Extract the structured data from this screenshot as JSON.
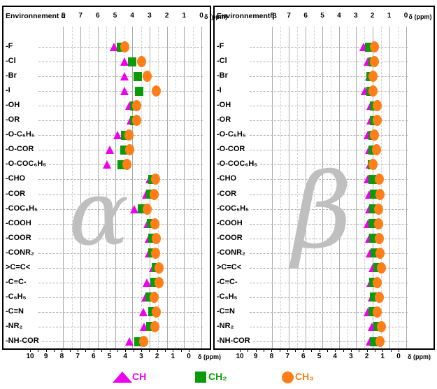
{
  "chart_data": [
    {
      "type": "scatter",
      "title": "Environnement α",
      "watermark": "α",
      "top_axis": {
        "ticks": [
          "8",
          "7",
          "6",
          "5",
          "4",
          "3",
          "2",
          "1",
          "0"
        ],
        "unit": "δ (ppm)",
        "range": [
          8,
          0
        ]
      },
      "bottom_axis": {
        "ticks": [
          "10",
          "9",
          "8",
          "7",
          "6",
          "5",
          "4",
          "3",
          "2",
          "1",
          "0"
        ],
        "unit": "δ (ppm)",
        "range": [
          10,
          0
        ]
      },
      "grid": "on",
      "categories": [
        "-F",
        "-Cl",
        "-Br",
        "-I",
        "-OH",
        "-OR",
        "-O-C₆H₅",
        "-O-COR",
        "-O-COC₆H₅",
        "-CHO",
        "-COR",
        "-COC₆H₅",
        "-COOH",
        "-COOR",
        "-CONR₂",
        ">C=C<",
        "-C≡C-",
        "-C₆H₅",
        "-C≡N",
        "-NR₂",
        "-NH-COR"
      ],
      "series": [
        {
          "name": "CH",
          "marker": "triangle",
          "color": "#ee00ee",
          "values": [
            5.05,
            4.45,
            4.45,
            4.45,
            4.15,
            4.1,
            4.85,
            5.3,
            5.45,
            3.0,
            3.2,
            3.9,
            3.1,
            3.05,
            3.05,
            2.8,
            3.15,
            3.25,
            3.35,
            3.3,
            4.15
          ]
        },
        {
          "name": "CH₂",
          "marker": "square",
          "color": "#0a9a0a",
          "values": [
            4.65,
            4.0,
            3.7,
            3.6,
            3.9,
            3.9,
            4.4,
            4.45,
            4.6,
            2.85,
            2.95,
            3.45,
            2.9,
            2.85,
            2.85,
            2.65,
            2.7,
            3.0,
            2.85,
            2.95,
            3.65
          ]
        },
        {
          "name": "CH₃",
          "marker": "circle",
          "color": "#ff7e17",
          "values": [
            4.45,
            3.45,
            3.15,
            2.6,
            3.75,
            3.75,
            4.2,
            4.15,
            4.3,
            2.65,
            2.75,
            3.15,
            2.7,
            2.6,
            2.65,
            2.45,
            2.45,
            2.75,
            2.6,
            2.7,
            3.35
          ]
        }
      ]
    },
    {
      "type": "scatter",
      "title": "Environnement β",
      "watermark": "β",
      "top_axis": {
        "ticks": [
          "8",
          "7",
          "6",
          "5",
          "4",
          "3",
          "2",
          "1",
          "0"
        ],
        "unit": "δ (ppm)",
        "range": [
          8,
          0
        ]
      },
      "bottom_axis": {
        "ticks": [
          "10",
          "9",
          "8",
          "7",
          "6",
          "5",
          "4",
          "3",
          "2",
          "1",
          "0"
        ],
        "unit": "δ (ppm)",
        "range": [
          10,
          0
        ]
      },
      "grid": "on",
      "categories": [
        "-F",
        "-Cl",
        "-Br",
        "-I",
        "-OH",
        "-OR",
        "-O-C₆H₅",
        "-O-COR",
        "-O-COC₆H₅",
        "-CHO",
        "-COR",
        "-COC₆H₅",
        "-COOH",
        "-COOR",
        "-CONR₂",
        ">C=C<",
        "-C≡C-",
        "-C₆H₅",
        "-C≡N",
        "-NR₂",
        "-NH-COR"
      ],
      "series": [
        {
          "name": "CH",
          "marker": "triangle",
          "color": "#ee00ee",
          "values": [
            2.55,
            2.3,
            2.2,
            2.45,
            2.1,
            2.1,
            2.3,
            2.2,
            2.15,
            2.3,
            2.2,
            2.2,
            2.3,
            2.2,
            2.15,
            2.0,
            2.1,
            2.05,
            2.3,
            2.05,
            2.15
          ]
        },
        {
          "name": "CH₂",
          "marker": "square",
          "color": "#0a9a0a",
          "values": [
            2.2,
            2.0,
            2.1,
            2.1,
            1.9,
            1.9,
            2.0,
            2.0,
            2.05,
            2.0,
            1.9,
            1.95,
            2.0,
            1.95,
            1.85,
            1.7,
            1.95,
            1.9,
            2.0,
            1.7,
            1.9
          ]
        },
        {
          "name": "CH₃",
          "marker": "circle",
          "color": "#ff7e17",
          "values": [
            1.9,
            1.87,
            1.95,
            1.97,
            1.7,
            1.7,
            1.88,
            1.75,
            1.95,
            1.6,
            1.55,
            1.65,
            1.65,
            1.6,
            1.55,
            1.45,
            1.7,
            1.6,
            1.7,
            1.45,
            1.55
          ]
        }
      ]
    }
  ],
  "legend": [
    {
      "label": "CH",
      "marker": "triangle",
      "color": "#ee00ee"
    },
    {
      "label": "CH₂",
      "marker": "square",
      "color": "#0a9a0a"
    },
    {
      "label": "CH₃",
      "marker": "circle",
      "color": "#ff7e17"
    }
  ],
  "colors": {
    "ch": "#ee00ee",
    "ch2": "#0a9a0a",
    "ch3": "#ff7e17",
    "grid_major": "#ababab",
    "grid_minor": "#d2d2d2",
    "watermark": "#bfbfbf",
    "border": "#000000"
  }
}
